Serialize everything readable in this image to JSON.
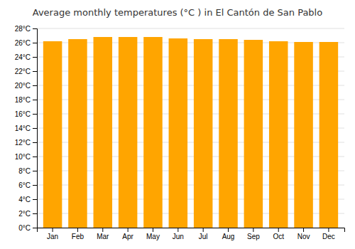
{
  "chart_data": {
    "type": "bar",
    "title": "Average monthly temperatures (°C ) in El Cantón de San Pablo",
    "categories": [
      "Jan",
      "Feb",
      "Mar",
      "Apr",
      "May",
      "Jun",
      "Jul",
      "Aug",
      "Sep",
      "Oct",
      "Nov",
      "Dec"
    ],
    "values": [
      26.2,
      26.5,
      26.8,
      26.8,
      26.8,
      26.6,
      26.5,
      26.5,
      26.4,
      26.2,
      26.1,
      26.1
    ],
    "color": "#FFA500",
    "ylim": [
      0,
      28
    ],
    "yticks": [
      {
        "value": 0,
        "label": "0°C"
      },
      {
        "value": 2,
        "label": "2°C"
      },
      {
        "value": 4,
        "label": "4°C"
      },
      {
        "value": 6,
        "label": "6°C"
      },
      {
        "value": 8,
        "label": "8°C"
      },
      {
        "value": 10,
        "label": "10°C"
      },
      {
        "value": 12,
        "label": "12°C"
      },
      {
        "value": 14,
        "label": "14°C"
      },
      {
        "value": 16,
        "label": "16°C"
      },
      {
        "value": 18,
        "label": "18°C"
      },
      {
        "value": 20,
        "label": "20°C"
      },
      {
        "value": 22,
        "label": "22°C"
      },
      {
        "value": 24,
        "label": "24°C"
      },
      {
        "value": 26,
        "label": "26°C"
      },
      {
        "value": 28,
        "label": "28°C"
      }
    ],
    "grid": true
  }
}
